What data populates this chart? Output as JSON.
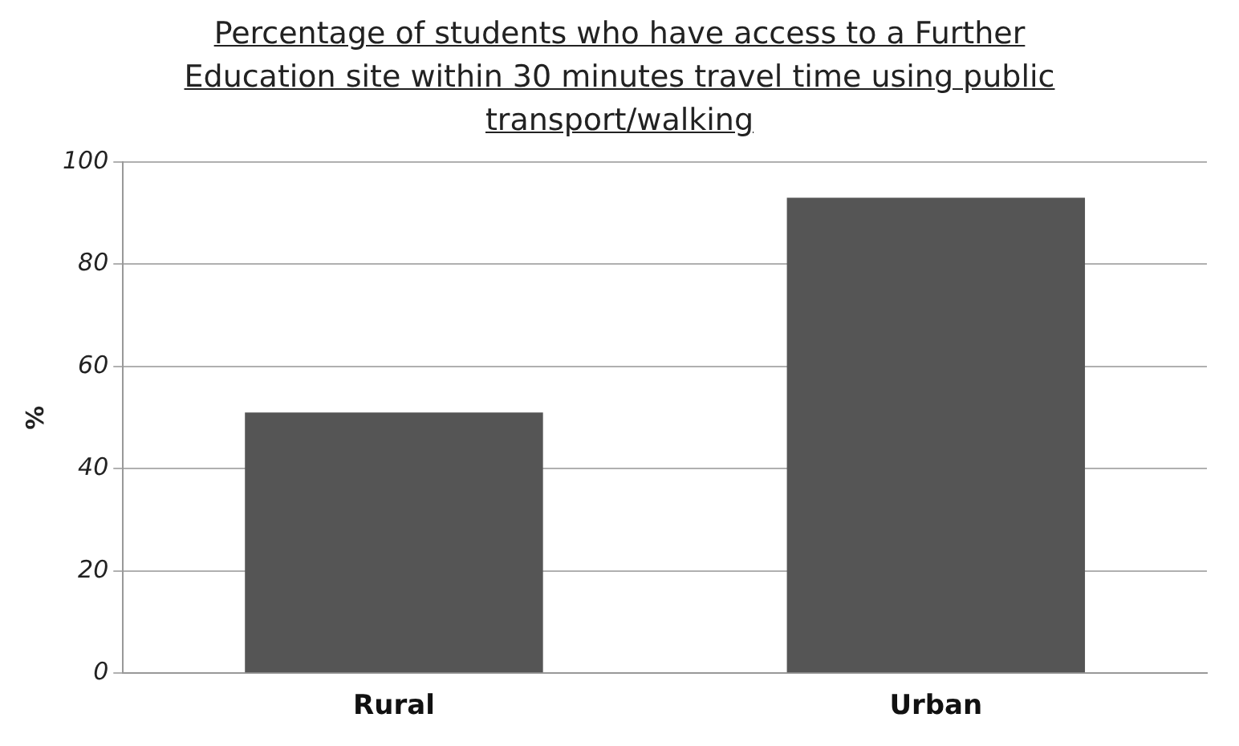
{
  "chart_data": {
    "type": "bar",
    "title": "Percentage of students who have access to a Further Education site within 30 minutes travel time using public transport/walking",
    "ylabel": "%",
    "categories": [
      "Rural",
      "Urban"
    ],
    "values": [
      51,
      93
    ],
    "color": "#555555",
    "ylim": [
      0,
      100
    ],
    "yticks": [
      0,
      20,
      40,
      60,
      80,
      100
    ],
    "grid": "y",
    "legend": false
  }
}
